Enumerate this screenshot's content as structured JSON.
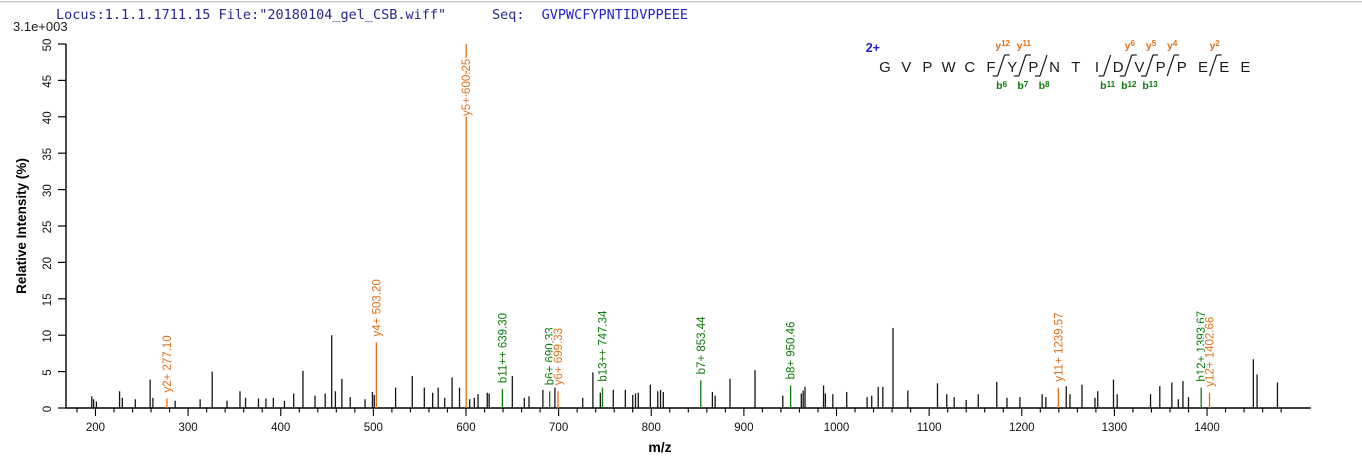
{
  "header": {
    "locus_file": "Locus:1.1.1.1711.15 File:\"20180104_gel_CSB.wiff\"",
    "seq_label": "Seq:",
    "seq_value": "GVPWCFYPNTIDVPPEEE",
    "intensity_scale": "3.1e+003"
  },
  "peptide_diagram": {
    "charge": "2+",
    "residues": [
      "G",
      "V",
      "P",
      "W",
      "C",
      "F",
      "Y",
      "P",
      "N",
      "T",
      "I",
      "D",
      "V",
      "P",
      "P",
      "E",
      "E",
      "E"
    ],
    "cuts": [
      {
        "after": 6,
        "y": "y12",
        "b": "b6"
      },
      {
        "after": 7,
        "y": "y11",
        "b": "b7"
      },
      {
        "after": 8,
        "b": "b8"
      },
      {
        "after": 11,
        "b": "b11"
      },
      {
        "after": 12,
        "y": "y6",
        "b": "b12"
      },
      {
        "after": 13,
        "y": "y5",
        "b": "b13"
      },
      {
        "after": 14,
        "y": "y4"
      },
      {
        "after": 16,
        "y": "y2"
      }
    ]
  },
  "chart_data": {
    "type": "bar",
    "subtype": "mass-spectrum-sticks",
    "title": "",
    "xlabel": "m/z",
    "ylabel": "Relative Intensity (%)",
    "xlim": [
      180,
      1512
    ],
    "ylim": [
      0,
      50
    ],
    "grid": false,
    "x_ticks_major": [
      200,
      300,
      400,
      500,
      600,
      700,
      800,
      900,
      1000,
      1100,
      1200,
      1300,
      1400
    ],
    "x_tick_minor_step": 20,
    "y_ticks": [
      0,
      5,
      10,
      15,
      20,
      25,
      30,
      35,
      40,
      45,
      50
    ],
    "colors": {
      "y_ion": "#E2701A",
      "b_ion": "#0B7A0B",
      "peak": "#151515",
      "axis": "#000000"
    },
    "peaks": [
      [
        196,
        1.6
      ],
      [
        198,
        1.2
      ],
      [
        201,
        0.9
      ],
      [
        226,
        2.3
      ],
      [
        229,
        1.4
      ],
      [
        243,
        1.2
      ],
      [
        259,
        3.9
      ],
      [
        262,
        1.4
      ],
      [
        277.1,
        1.3,
        "y2+ 277.10",
        "y"
      ],
      [
        286,
        1.0
      ],
      [
        313,
        1.2
      ],
      [
        326,
        5.0
      ],
      [
        342,
        1.0
      ],
      [
        356,
        2.3
      ],
      [
        362,
        1.4
      ],
      [
        376,
        1.3
      ],
      [
        384,
        1.3
      ],
      [
        392,
        1.4
      ],
      [
        404,
        1.0
      ],
      [
        414,
        2.0
      ],
      [
        424,
        5.1
      ],
      [
        437,
        1.7
      ],
      [
        448,
        2.0
      ],
      [
        455,
        10.0
      ],
      [
        459,
        2.3
      ],
      [
        466,
        4.0
      ],
      [
        475,
        1.5
      ],
      [
        491,
        1.2
      ],
      [
        499,
        2.2
      ],
      [
        501,
        1.8
      ],
      [
        503.2,
        9.0,
        "y4+ 503.20",
        "y"
      ],
      [
        524,
        2.8
      ],
      [
        542,
        4.4
      ],
      [
        555,
        2.8
      ],
      [
        564,
        2.1
      ],
      [
        570,
        2.8
      ],
      [
        577,
        1.4
      ],
      [
        585,
        4.2
      ],
      [
        593,
        2.8
      ],
      [
        600.25,
        50.0,
        "y5+ 600.25",
        "y"
      ],
      [
        604,
        1.2
      ],
      [
        609,
        1.4
      ],
      [
        613,
        1.9
      ],
      [
        623,
        2.1
      ],
      [
        625,
        2.0
      ],
      [
        639.3,
        2.6,
        "b11++ 639.30",
        "b"
      ],
      [
        650,
        4.4
      ],
      [
        663,
        1.4
      ],
      [
        668,
        1.6
      ],
      [
        683,
        2.5
      ],
      [
        690.33,
        2.3,
        "b6+ 690.33",
        "b"
      ],
      [
        696,
        2.8
      ],
      [
        699.33,
        2.3,
        "y6+ 699.33",
        "y"
      ],
      [
        726,
        1.4
      ],
      [
        737,
        4.9
      ],
      [
        745,
        2.1
      ],
      [
        747.34,
        2.8,
        "b13++ 747.34",
        "b"
      ],
      [
        759,
        2.5
      ],
      [
        772,
        2.5
      ],
      [
        780,
        1.8
      ],
      [
        783,
        2.0
      ],
      [
        786,
        2.1
      ],
      [
        799,
        3.2
      ],
      [
        807,
        2.3
      ],
      [
        810,
        2.5
      ],
      [
        813,
        2.2
      ],
      [
        853.44,
        3.8,
        "b7+ 853.44",
        "b"
      ],
      [
        866,
        2.2
      ],
      [
        869,
        1.7
      ],
      [
        885,
        4.0
      ],
      [
        912,
        5.2
      ],
      [
        942,
        1.7
      ],
      [
        950.46,
        3.1,
        "b8+ 950.46",
        "b"
      ],
      [
        962,
        2.0
      ],
      [
        964,
        2.4
      ],
      [
        966,
        2.9
      ],
      [
        986,
        3.1
      ],
      [
        988,
        2.0
      ],
      [
        996,
        1.9
      ],
      [
        1011,
        2.2
      ],
      [
        1033,
        1.5
      ],
      [
        1038,
        1.7
      ],
      [
        1045,
        2.9
      ],
      [
        1050,
        2.9
      ],
      [
        1061,
        11.0
      ],
      [
        1077,
        2.4
      ],
      [
        1109,
        3.4
      ],
      [
        1119,
        1.9
      ],
      [
        1127,
        1.5
      ],
      [
        1140,
        1.1
      ],
      [
        1153,
        1.9
      ],
      [
        1173,
        3.6
      ],
      [
        1184,
        1.4
      ],
      [
        1198,
        1.5
      ],
      [
        1222,
        1.9
      ],
      [
        1226,
        1.5
      ],
      [
        1239.57,
        2.8,
        "y11+ 1239.57",
        "y"
      ],
      [
        1248,
        3.0
      ],
      [
        1252,
        1.9
      ],
      [
        1265,
        3.2
      ],
      [
        1279,
        1.4
      ],
      [
        1282,
        2.3
      ],
      [
        1299,
        3.9
      ],
      [
        1303,
        1.9
      ],
      [
        1339,
        1.9
      ],
      [
        1349,
        3.0
      ],
      [
        1362,
        3.5
      ],
      [
        1369,
        1.2
      ],
      [
        1374,
        3.7
      ],
      [
        1380,
        1.5
      ],
      [
        1393.67,
        2.8,
        "b12+ 1393.67",
        "b"
      ],
      [
        1402.66,
        2.1,
        "y12+ 1402.66",
        "y"
      ],
      [
        1450,
        6.7
      ],
      [
        1454,
        4.6
      ],
      [
        1476,
        3.5
      ]
    ]
  }
}
